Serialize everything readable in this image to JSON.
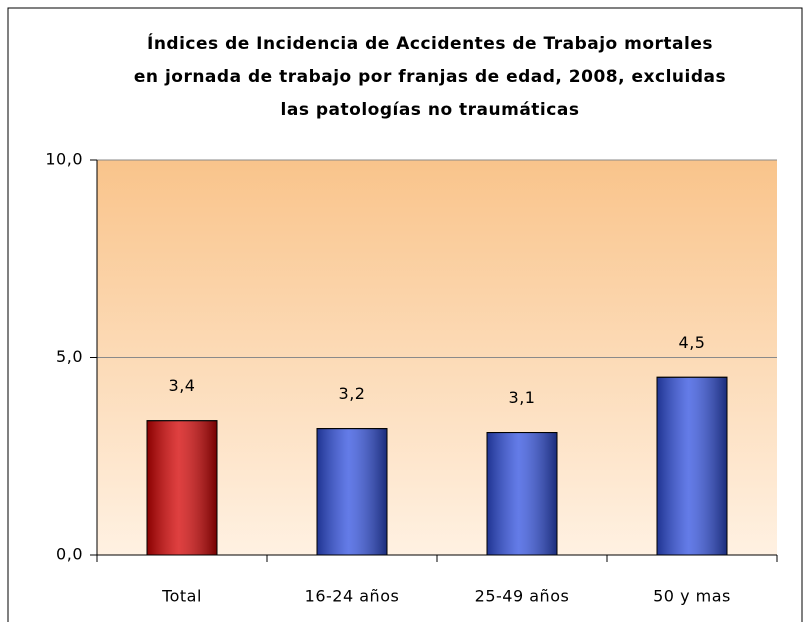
{
  "chart_data": {
    "type": "bar",
    "title": [
      "Índices de Incidencia de Accidentes de Trabajo mortales",
      "en jornada de trabajo por franjas de edad, 2008, excluidas",
      "las patologías no traumáticas"
    ],
    "categories": [
      "Total",
      "16-24 años",
      "25-49 años",
      "50 y mas"
    ],
    "values": [
      3.4,
      3.2,
      3.1,
      4.5
    ],
    "value_labels": [
      "3,4",
      "3,2",
      "3,1",
      "4,5"
    ],
    "colors": [
      "#d40000",
      "#3050e0",
      "#3050e0",
      "#3050e0"
    ],
    "ylim": [
      0,
      10
    ],
    "yticks": [
      {
        "value": 0,
        "label": "0,0"
      },
      {
        "value": 5,
        "label": "5,0"
      },
      {
        "value": 10,
        "label": "10,0"
      }
    ],
    "grid": true
  }
}
